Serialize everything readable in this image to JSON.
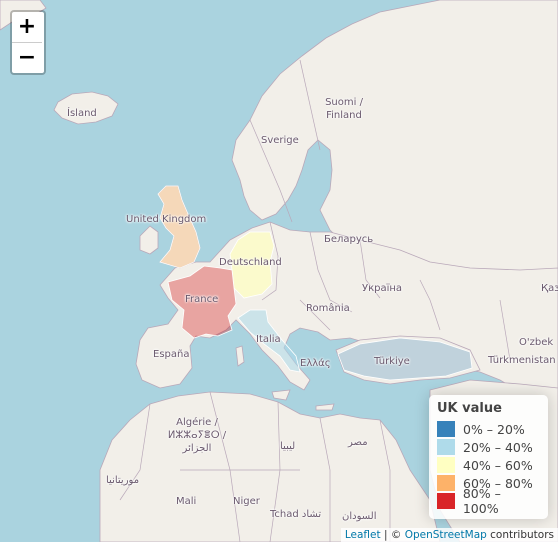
{
  "zoom": {
    "in_label": "+",
    "out_label": "−"
  },
  "labels": {
    "island": "Ísland",
    "suomi1": "Suomi /",
    "suomi2": "Finland",
    "sverige": "Sverige",
    "uk": "United Kingdom",
    "deutschland": "Deutschland",
    "belarus": "Беларусь",
    "ukraina": "Україна",
    "france": "France",
    "romania": "România",
    "italia": "Italia",
    "espana": "España",
    "ellas": "Ελλάς",
    "turkiye": "Türkiye",
    "kaz": "Қаз",
    "ozbek": "O'zbek",
    "turkmenistan": "Türkmenistan",
    "algerie1": "Algérie /",
    "algerie2": "ⵍⵣⵣⴰⵢⴻⵔ /",
    "algerie3": "الجزائر",
    "libya": "ليبيا",
    "misr": "مصر",
    "mauritania": "موريتانيا",
    "mali": "Mali",
    "niger": "Niger",
    "tchad1": "Tchad",
    "tchad2": "تشاد",
    "sudan": "السودان"
  },
  "legend": {
    "title": "UK value",
    "items": [
      {
        "label": "0% – 20%",
        "color": "#2c7bb6"
      },
      {
        "label": "20% – 40%",
        "color": "#abd9e9"
      },
      {
        "label": "40% – 60%",
        "color": "#ffffbf"
      },
      {
        "label": "60% – 80%",
        "color": "#fdae61"
      },
      {
        "label": "80% – 100%",
        "color": "#d7191c"
      }
    ]
  },
  "choropleth": [
    {
      "country": "United Kingdom",
      "range": "60% – 80%",
      "color": "#fdae61"
    },
    {
      "country": "Deutschland",
      "range": "40% – 60%",
      "color": "#ffffbf"
    },
    {
      "country": "France",
      "range": "80% – 100%",
      "color": "#d7191c"
    },
    {
      "country": "Italia",
      "range": "20% – 40%",
      "color": "#abd9e9"
    },
    {
      "country": "Türkiye",
      "range": "0% – 20%",
      "color": "#2c7bb6"
    }
  ],
  "colors": {
    "water": "#aad3df",
    "land": "#f2efe9",
    "border": "#b9a8b9"
  },
  "attribution": {
    "leaflet": "Leaflet",
    "sep": " | © ",
    "osm": "OpenStreetMap",
    "rest": " contributors"
  }
}
